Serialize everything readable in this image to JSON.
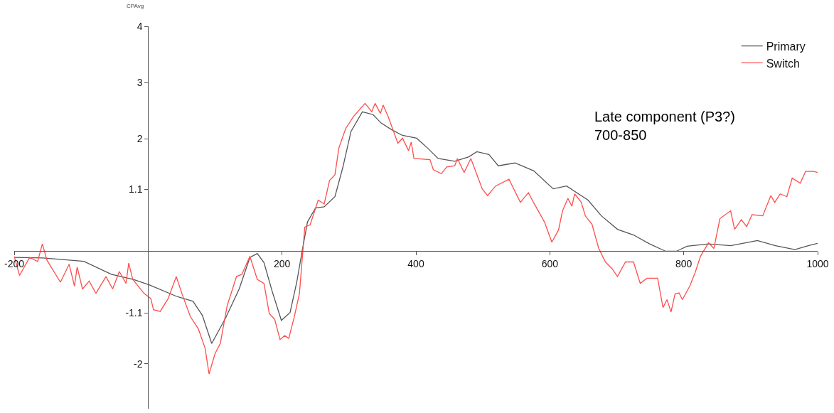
{
  "chart_data": {
    "type": "line",
    "ylabel": "CPAvg",
    "xlim": [
      -200,
      1000
    ],
    "ylim": [
      -2.8,
      4
    ],
    "xticks": [
      -200,
      200,
      400,
      600,
      800,
      1000
    ],
    "yticks": [
      -2,
      -1.1,
      1.1,
      2,
      3,
      4
    ],
    "legend": "top right",
    "marker": "none",
    "line_style": "solid",
    "annotations": [
      "Late component (P3?)\n700-850"
    ],
    "series": [
      {
        "name": "Primary",
        "color": "#555555",
        "x": [
          -200,
          -157,
          -96,
          -55,
          -22,
          2,
          42,
          67,
          81,
          95,
          116,
          136,
          152,
          163,
          173,
          185,
          199,
          212,
          222,
          230,
          238,
          250,
          263,
          279,
          291,
          303,
          320,
          336,
          348,
          364,
          380,
          401,
          417,
          433,
          458,
          479,
          491,
          509,
          523,
          548,
          576,
          605,
          625,
          657,
          677,
          701,
          725,
          749,
          773,
          789,
          805,
          837,
          870,
          910,
          937,
          966,
          986,
          1000
        ],
        "values": [
          -0.11,
          -0.12,
          -0.18,
          -0.41,
          -0.5,
          -0.6,
          -0.8,
          -0.89,
          -1.14,
          -1.64,
          -1.18,
          -0.67,
          -0.11,
          -0.04,
          -0.2,
          -0.7,
          -1.23,
          -1.09,
          -0.55,
          0.0,
          0.52,
          0.77,
          0.79,
          0.97,
          1.5,
          2.13,
          2.48,
          2.43,
          2.28,
          2.16,
          2.06,
          2.01,
          1.84,
          1.65,
          1.6,
          1.68,
          1.77,
          1.72,
          1.52,
          1.57,
          1.43,
          1.11,
          1.16,
          0.91,
          0.63,
          0.39,
          0.29,
          0.13,
          0.0,
          0.0,
          0.09,
          0.13,
          0.1,
          0.19,
          0.1,
          0.03,
          0.1,
          0.14
        ]
      },
      {
        "name": "Switch",
        "color": "#ff4d4d",
        "x": [
          -200,
          -192,
          -177,
          -165,
          -158,
          -151,
          -131,
          -118,
          -110,
          -106,
          -98,
          -88,
          -78,
          -63,
          -53,
          -43,
          -33,
          -29,
          -23,
          -6,
          4,
          8,
          18,
          30,
          42,
          51,
          63,
          75,
          85,
          91,
          100,
          108,
          118,
          132,
          140,
          152,
          163,
          173,
          181,
          189,
          197,
          204,
          210,
          218,
          226,
          234,
          242,
          254,
          263,
          271,
          279,
          285,
          295,
          307,
          324,
          334,
          339,
          347,
          351,
          359,
          373,
          380,
          389,
          393,
          397,
          421,
          426,
          438,
          446,
          458,
          462,
          472,
          482,
          499,
          507,
          519,
          539,
          556,
          568,
          576,
          592,
          603,
          613,
          619,
          627,
          633,
          637,
          647,
          653,
          663,
          673,
          683,
          693,
          701,
          713,
          725,
          735,
          745,
          761,
          769,
          775,
          781,
          787,
          793,
          798,
          809,
          817,
          825,
          837,
          845,
          854,
          870,
          876,
          886,
          894,
          902,
          918,
          930,
          936,
          944,
          954,
          962,
          974,
          982,
          994,
          1000
        ],
        "values": [
          -0.09,
          -0.43,
          -0.11,
          -0.18,
          0.13,
          -0.16,
          -0.55,
          -0.23,
          -0.62,
          -0.28,
          -0.67,
          -0.53,
          -0.75,
          -0.45,
          -0.67,
          -0.36,
          -0.57,
          -0.21,
          -0.5,
          -0.75,
          -0.84,
          -1.04,
          -1.07,
          -0.84,
          -0.45,
          -0.77,
          -1.16,
          -1.38,
          -1.72,
          -2.18,
          -1.82,
          -1.63,
          -0.97,
          -0.45,
          -0.41,
          -0.09,
          -0.5,
          -0.57,
          -1.11,
          -1.21,
          -1.57,
          -1.5,
          -1.55,
          -1.18,
          -0.75,
          0.43,
          0.47,
          0.91,
          0.84,
          1.26,
          1.36,
          1.84,
          2.18,
          2.4,
          2.63,
          2.48,
          2.63,
          2.45,
          2.6,
          2.38,
          1.92,
          2.01,
          1.79,
          1.94,
          1.65,
          1.63,
          1.45,
          1.38,
          1.5,
          1.52,
          1.65,
          1.4,
          1.65,
          1.11,
          0.99,
          1.16,
          1.28,
          0.87,
          1.04,
          0.86,
          0.52,
          0.16,
          0.38,
          0.72,
          0.94,
          0.8,
          1.02,
          0.87,
          0.63,
          0.48,
          0.05,
          -0.19,
          -0.31,
          -0.45,
          -0.19,
          -0.19,
          -0.57,
          -0.48,
          -0.48,
          -1.0,
          -0.86,
          -1.08,
          -0.76,
          -0.74,
          -0.86,
          -0.62,
          -0.38,
          -0.09,
          0.15,
          0.05,
          0.58,
          0.72,
          0.39,
          0.56,
          0.44,
          0.65,
          0.63,
          0.99,
          0.87,
          1.02,
          0.97,
          1.3,
          1.21,
          1.42,
          1.42,
          1.4
        ]
      }
    ]
  }
}
